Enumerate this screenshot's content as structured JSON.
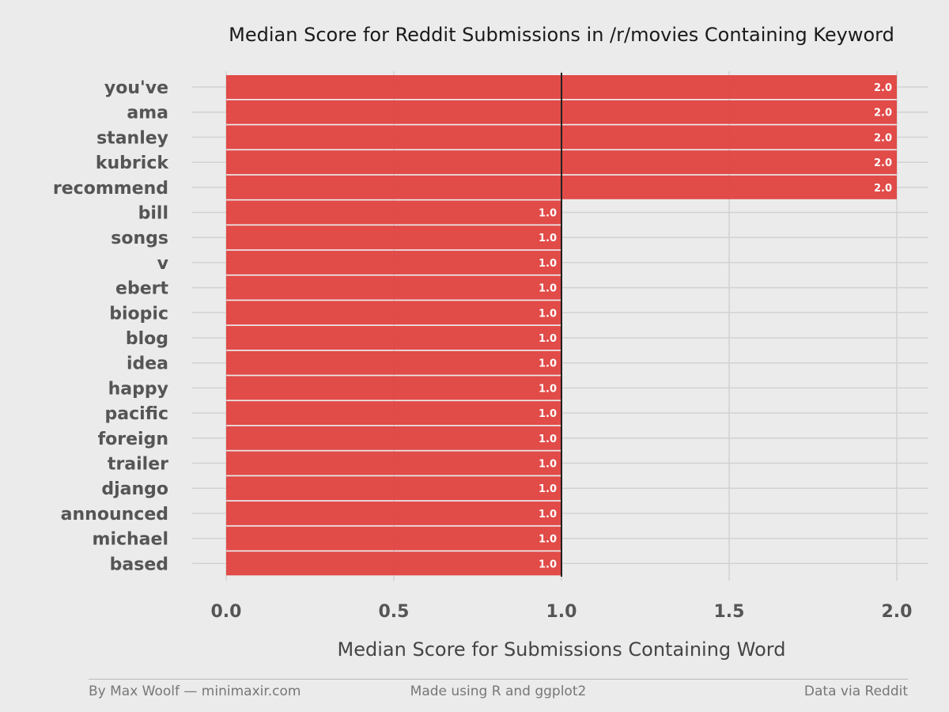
{
  "chart_data": {
    "type": "bar",
    "orientation": "horizontal",
    "title": "Median Score for Reddit Submissions in /r/movies Containing Keyword",
    "xlabel": "Median Score for Submissions Containing Word",
    "ylabel": "",
    "xlim": [
      0,
      2
    ],
    "x_ticks": [
      "0.0",
      "0.5",
      "1.0",
      "1.5",
      "2.0"
    ],
    "reference_line": 1.0,
    "grid": true,
    "bar_color": "#e0423f",
    "categories": [
      "you've",
      "ama",
      "stanley",
      "kubrick",
      "recommend",
      "bill",
      "songs",
      "v",
      "ebert",
      "biopic",
      "blog",
      "idea",
      "happy",
      "pacific",
      "foreign",
      "trailer",
      "django",
      "announced",
      "michael",
      "based"
    ],
    "values": [
      2.0,
      2.0,
      2.0,
      2.0,
      2.0,
      1.0,
      1.0,
      1.0,
      1.0,
      1.0,
      1.0,
      1.0,
      1.0,
      1.0,
      1.0,
      1.0,
      1.0,
      1.0,
      1.0,
      1.0
    ],
    "data_labels": [
      "2.0",
      "2.0",
      "2.0",
      "2.0",
      "2.0",
      "1.0",
      "1.0",
      "1.0",
      "1.0",
      "1.0",
      "1.0",
      "1.0",
      "1.0",
      "1.0",
      "1.0",
      "1.0",
      "1.0",
      "1.0",
      "1.0",
      "1.0"
    ]
  },
  "footer": {
    "left": "By Max Woolf — minimaxir.com",
    "center": "Made using R and ggplot2",
    "right": "Data via Reddit"
  }
}
